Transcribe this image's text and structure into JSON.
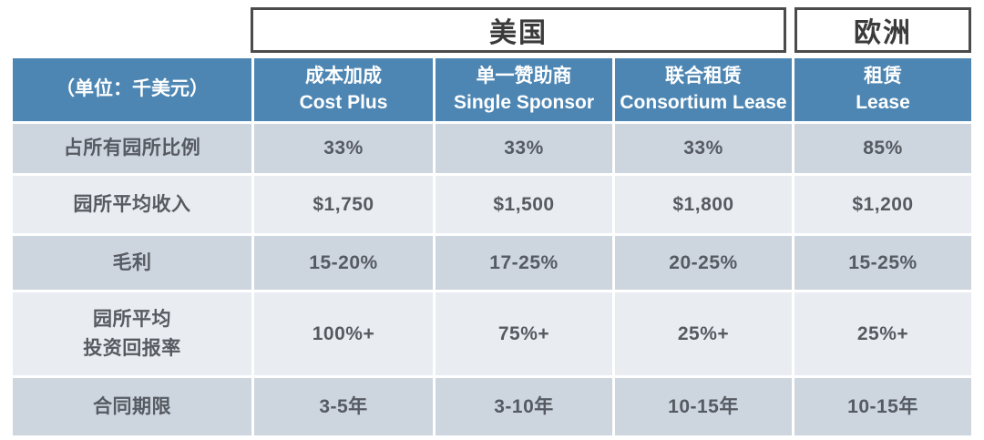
{
  "chart_data": {
    "type": "table",
    "unit_label": "（单位：千美元）",
    "column_groups": [
      {
        "label": "美国",
        "span": 3
      },
      {
        "label": "欧洲",
        "span": 1
      }
    ],
    "columns": [
      {
        "zh": "成本加成",
        "en": "Cost Plus"
      },
      {
        "zh": "单一赞助商",
        "en": "Single Sponsor"
      },
      {
        "zh": "联合租赁",
        "en": "Consortium Lease"
      },
      {
        "zh": "租赁",
        "en": "Lease"
      }
    ],
    "rows": [
      {
        "label": "占所有园所比例",
        "values": [
          "33%",
          "33%",
          "33%",
          "85%"
        ]
      },
      {
        "label": "园所平均收入",
        "values": [
          "$1,750",
          "$1,500",
          "$1,800",
          "$1,200"
        ]
      },
      {
        "label": "毛利",
        "values": [
          "15-20%",
          "17-25%",
          "20-25%",
          "15-25%"
        ]
      },
      {
        "label": "园所平均\n投资回报率",
        "values": [
          "100%+",
          "75%+",
          "25%+",
          "25%+"
        ]
      },
      {
        "label": "合同期限",
        "values": [
          "3-5年",
          "3-10年",
          "10-15年",
          "10-15年"
        ]
      }
    ]
  },
  "colors": {
    "header_bg": "#4d86b3",
    "row_dark_bg": "#cdd5df",
    "row_light_bg": "#e9edf2",
    "header_text": "#ffffff",
    "cell_text": "#565b62",
    "region_box_border": "#4b4b4b",
    "region_box_text": "#3b3b3b"
  }
}
